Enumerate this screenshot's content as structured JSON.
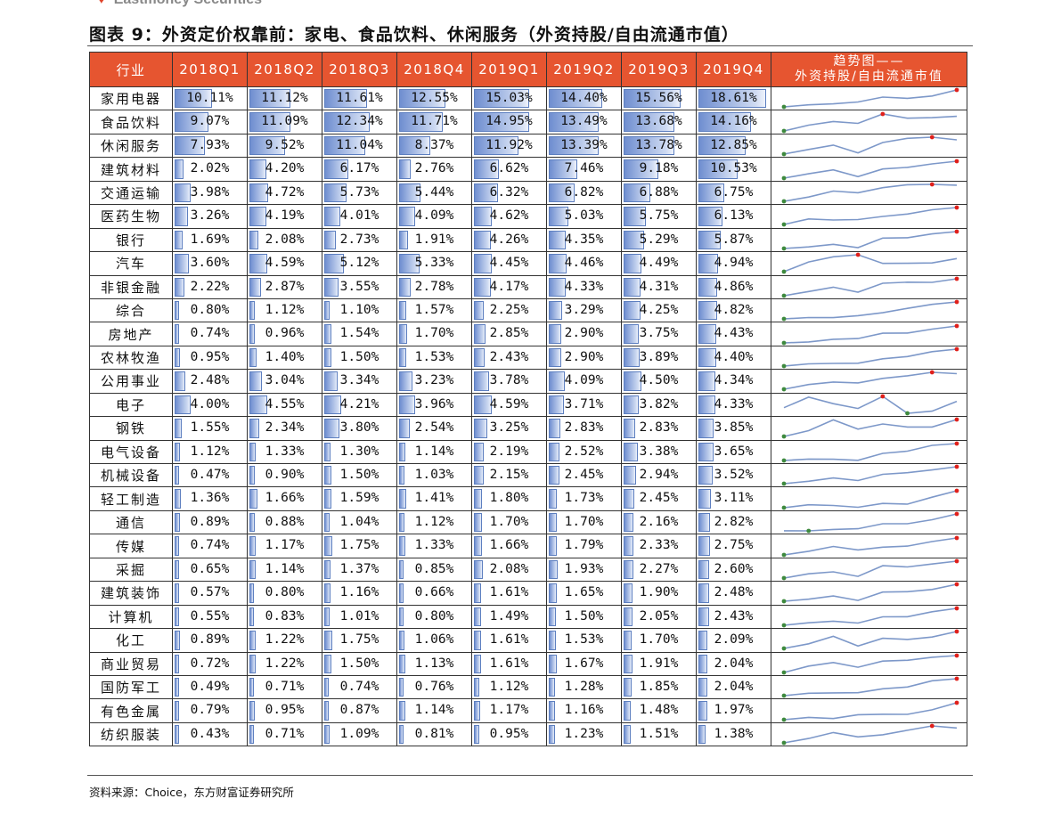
{
  "brand": "Eastmoney Securities",
  "title": "图表 9：外资定价权靠前：家电、食品饮料、休闲服务（外资持股/自由流通市值）",
  "header": {
    "industry": "行业",
    "quarters": [
      "2018Q1",
      "2018Q2",
      "2018Q3",
      "2018Q4",
      "2019Q1",
      "2019Q2",
      "2019Q3",
      "2019Q4"
    ],
    "trend_line1": "趋势图——",
    "trend_line2": "外资持股/自由流通市值"
  },
  "colors": {
    "header_bg": "#e65530",
    "bar": "#6f8ed0",
    "spark_line": "#7d98c9",
    "max_marker": "#e0201b",
    "min_marker": "#3e8a3e"
  },
  "rows": [
    {
      "name": "家用电器",
      "values": [
        10.11,
        11.12,
        11.61,
        12.55,
        15.03,
        14.4,
        15.56,
        18.61
      ],
      "labels": [
        "10.11%",
        "11.12%",
        "11.61%",
        "12.55%",
        "15.03%",
        "14.40%",
        "15.56%",
        "18.61%"
      ]
    },
    {
      "name": "食品饮料",
      "values": [
        9.07,
        11.09,
        12.34,
        11.71,
        14.95,
        13.49,
        13.68,
        14.16
      ],
      "labels": [
        "9.07%",
        "11.09%",
        "12.34%",
        "11.71%",
        "14.95%",
        "13.49%",
        "13.68%",
        "14.16%"
      ]
    },
    {
      "name": "休闲服务",
      "values": [
        7.93,
        9.52,
        11.04,
        8.37,
        11.92,
        13.39,
        13.78,
        12.85
      ],
      "labels": [
        "7.93%",
        "9.52%",
        "11.04%",
        "8.37%",
        "11.92%",
        "13.39%",
        "13.78%",
        "12.85%"
      ]
    },
    {
      "name": "建筑材料",
      "values": [
        2.02,
        4.2,
        6.17,
        2.76,
        6.62,
        7.46,
        9.18,
        10.53
      ],
      "labels": [
        "2.02%",
        "4.20%",
        "6.17%",
        "2.76%",
        "6.62%",
        "7.46%",
        "9.18%",
        "10.53%"
      ]
    },
    {
      "name": "交通运输",
      "values": [
        3.98,
        4.72,
        5.73,
        5.44,
        6.32,
        6.82,
        6.88,
        6.75
      ],
      "labels": [
        "3.98%",
        "4.72%",
        "5.73%",
        "5.44%",
        "6.32%",
        "6.82%",
        "6.88%",
        "6.75%"
      ]
    },
    {
      "name": "医药生物",
      "values": [
        3.26,
        4.19,
        4.01,
        4.09,
        4.62,
        5.03,
        5.75,
        6.13
      ],
      "labels": [
        "3.26%",
        "4.19%",
        "4.01%",
        "4.09%",
        "4.62%",
        "5.03%",
        "5.75%",
        "6.13%"
      ]
    },
    {
      "name": "银行",
      "values": [
        1.69,
        2.08,
        2.73,
        1.91,
        4.26,
        4.35,
        5.29,
        5.87
      ],
      "labels": [
        "1.69%",
        "2.08%",
        "2.73%",
        "1.91%",
        "4.26%",
        "4.35%",
        "5.29%",
        "5.87%"
      ]
    },
    {
      "name": "汽车",
      "values": [
        3.6,
        4.59,
        5.12,
        5.33,
        4.45,
        4.46,
        4.49,
        4.94
      ],
      "labels": [
        "3.60%",
        "4.59%",
        "5.12%",
        "5.33%",
        "4.45%",
        "4.46%",
        "4.49%",
        "4.94%"
      ]
    },
    {
      "name": "非银金融",
      "values": [
        2.22,
        2.87,
        3.55,
        2.78,
        4.17,
        4.33,
        4.31,
        4.86
      ],
      "labels": [
        "2.22%",
        "2.87%",
        "3.55%",
        "2.78%",
        "4.17%",
        "4.33%",
        "4.31%",
        "4.86%"
      ]
    },
    {
      "name": "综合",
      "values": [
        0.8,
        1.12,
        1.1,
        1.57,
        2.25,
        3.29,
        4.25,
        4.82
      ],
      "labels": [
        "0.80%",
        "1.12%",
        "1.10%",
        "1.57%",
        "2.25%",
        "3.29%",
        "4.25%",
        "4.82%"
      ]
    },
    {
      "name": "房地产",
      "values": [
        0.74,
        0.96,
        1.54,
        1.7,
        2.85,
        2.9,
        3.75,
        4.43
      ],
      "labels": [
        "0.74%",
        "0.96%",
        "1.54%",
        "1.70%",
        "2.85%",
        "2.90%",
        "3.75%",
        "4.43%"
      ]
    },
    {
      "name": "农林牧渔",
      "values": [
        0.95,
        1.4,
        1.5,
        1.53,
        2.43,
        2.9,
        3.89,
        4.4
      ],
      "labels": [
        "0.95%",
        "1.40%",
        "1.50%",
        "1.53%",
        "2.43%",
        "2.90%",
        "3.89%",
        "4.40%"
      ]
    },
    {
      "name": "公用事业",
      "values": [
        2.48,
        3.04,
        3.34,
        3.23,
        3.78,
        4.09,
        4.5,
        4.34
      ],
      "labels": [
        "2.48%",
        "3.04%",
        "3.34%",
        "3.23%",
        "3.78%",
        "4.09%",
        "4.50%",
        "4.34%"
      ]
    },
    {
      "name": "电子",
      "values": [
        4.0,
        4.55,
        4.21,
        3.96,
        4.59,
        3.71,
        3.82,
        4.33
      ],
      "labels": [
        "4.00%",
        "4.55%",
        "4.21%",
        "3.96%",
        "4.59%",
        "3.71%",
        "3.82%",
        "4.33%"
      ]
    },
    {
      "name": "钢铁",
      "values": [
        1.55,
        2.34,
        3.8,
        2.54,
        3.25,
        2.83,
        2.83,
        3.85
      ],
      "labels": [
        "1.55%",
        "2.34%",
        "3.80%",
        "2.54%",
        "3.25%",
        "2.83%",
        "2.83%",
        "3.85%"
      ]
    },
    {
      "name": "电气设备",
      "values": [
        1.12,
        1.33,
        1.3,
        1.14,
        2.19,
        2.52,
        3.38,
        3.65
      ],
      "labels": [
        "1.12%",
        "1.33%",
        "1.30%",
        "1.14%",
        "2.19%",
        "2.52%",
        "3.38%",
        "3.65%"
      ]
    },
    {
      "name": "机械设备",
      "values": [
        0.47,
        0.9,
        1.5,
        1.03,
        2.15,
        2.45,
        2.94,
        3.52
      ],
      "labels": [
        "0.47%",
        "0.90%",
        "1.50%",
        "1.03%",
        "2.15%",
        "2.45%",
        "2.94%",
        "3.52%"
      ]
    },
    {
      "name": "轻工制造",
      "values": [
        1.36,
        1.66,
        1.59,
        1.41,
        1.8,
        1.73,
        2.45,
        3.11
      ],
      "labels": [
        "1.36%",
        "1.66%",
        "1.59%",
        "1.41%",
        "1.80%",
        "1.73%",
        "2.45%",
        "3.11%"
      ]
    },
    {
      "name": "通信",
      "values": [
        0.89,
        0.88,
        1.04,
        1.12,
        1.7,
        1.7,
        2.16,
        2.82
      ],
      "labels": [
        "0.89%",
        "0.88%",
        "1.04%",
        "1.12%",
        "1.70%",
        "1.70%",
        "2.16%",
        "2.82%"
      ]
    },
    {
      "name": "传媒",
      "values": [
        0.74,
        1.17,
        1.75,
        1.33,
        1.66,
        1.79,
        2.33,
        2.75
      ],
      "labels": [
        "0.74%",
        "1.17%",
        "1.75%",
        "1.33%",
        "1.66%",
        "1.79%",
        "2.33%",
        "2.75%"
      ]
    },
    {
      "name": "采掘",
      "values": [
        0.65,
        1.14,
        1.37,
        0.85,
        2.08,
        1.93,
        2.27,
        2.6
      ],
      "labels": [
        "0.65%",
        "1.14%",
        "1.37%",
        "0.85%",
        "2.08%",
        "1.93%",
        "2.27%",
        "2.60%"
      ]
    },
    {
      "name": "建筑装饰",
      "values": [
        0.57,
        0.8,
        1.16,
        0.66,
        1.61,
        1.65,
        1.9,
        2.48
      ],
      "labels": [
        "0.57%",
        "0.80%",
        "1.16%",
        "0.66%",
        "1.61%",
        "1.65%",
        "1.90%",
        "2.48%"
      ]
    },
    {
      "name": "计算机",
      "values": [
        0.55,
        0.83,
        1.01,
        0.8,
        1.49,
        1.5,
        2.05,
        2.43
      ],
      "labels": [
        "0.55%",
        "0.83%",
        "1.01%",
        "0.80%",
        "1.49%",
        "1.50%",
        "2.05%",
        "2.43%"
      ]
    },
    {
      "name": "化工",
      "values": [
        0.89,
        1.22,
        1.75,
        1.06,
        1.61,
        1.53,
        1.7,
        2.09
      ],
      "labels": [
        "0.89%",
        "1.22%",
        "1.75%",
        "1.06%",
        "1.61%",
        "1.53%",
        "1.70%",
        "2.09%"
      ]
    },
    {
      "name": "商业贸易",
      "values": [
        0.72,
        1.22,
        1.5,
        1.13,
        1.61,
        1.67,
        1.91,
        2.04
      ],
      "labels": [
        "0.72%",
        "1.22%",
        "1.50%",
        "1.13%",
        "1.61%",
        "1.67%",
        "1.91%",
        "2.04%"
      ]
    },
    {
      "name": "国防军工",
      "values": [
        0.49,
        0.71,
        0.74,
        0.76,
        1.12,
        1.28,
        1.85,
        2.04
      ],
      "labels": [
        "0.49%",
        "0.71%",
        "0.74%",
        "0.76%",
        "1.12%",
        "1.28%",
        "1.85%",
        "2.04%"
      ]
    },
    {
      "name": "有色金属",
      "values": [
        0.79,
        0.95,
        0.87,
        1.14,
        1.17,
        1.16,
        1.48,
        1.97
      ],
      "labels": [
        "0.79%",
        "0.95%",
        "0.87%",
        "1.14%",
        "1.17%",
        "1.16%",
        "1.48%",
        "1.97%"
      ]
    },
    {
      "name": "纺织服装",
      "values": [
        0.43,
        0.71,
        1.09,
        0.81,
        0.95,
        1.23,
        1.51,
        1.38
      ],
      "labels": [
        "0.43%",
        "0.71%",
        "1.09%",
        "0.81%",
        "0.95%",
        "1.23%",
        "1.51%",
        "1.38%"
      ]
    }
  ],
  "source": "资料来源：Choice，东方财富证券研究所"
}
